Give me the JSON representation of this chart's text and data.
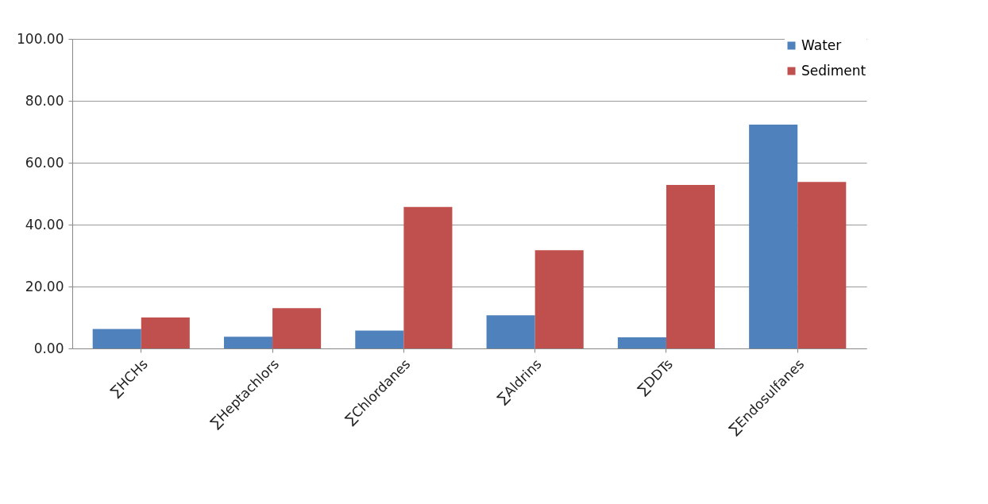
{
  "chart_data": {
    "type": "bar",
    "categories": [
      "∑HCHs",
      "∑Heptachlors",
      "∑Chlordanes",
      "∑Aldrins",
      "∑DDTs",
      "∑Endosulfanes"
    ],
    "series": [
      {
        "name": "Water",
        "color": "#4f81bd",
        "values": [
          6.3,
          3.8,
          5.8,
          10.7,
          3.6,
          72.3
        ]
      },
      {
        "name": "Sediment",
        "color": "#c0504d",
        "values": [
          10,
          13,
          45.7,
          31.7,
          52.8,
          53.8
        ]
      }
    ],
    "ylim": [
      0,
      100
    ],
    "yticks": [
      {
        "value": 0,
        "label": "0.00"
      },
      {
        "value": 20,
        "label": "20.00"
      },
      {
        "value": 40,
        "label": "40.00"
      },
      {
        "value": 60,
        "label": "60.00"
      },
      {
        "value": 80,
        "label": "80.00"
      },
      {
        "value": 100,
        "label": "100.00"
      }
    ],
    "grid": "y",
    "legend": "top right"
  }
}
